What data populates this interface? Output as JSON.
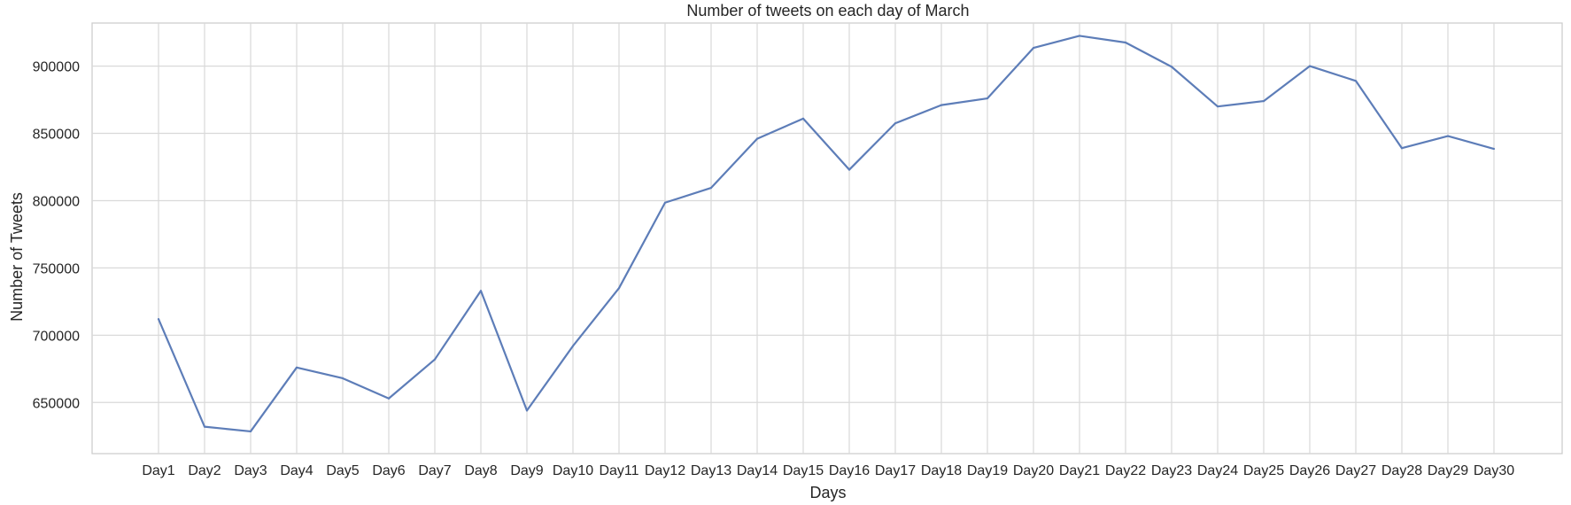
{
  "chart_data": {
    "type": "line",
    "title": "Number of tweets on each day of March",
    "xlabel": "Days",
    "ylabel": "Number of Tweets",
    "categories": [
      "Day1",
      "Day2",
      "Day3",
      "Day4",
      "Day5",
      "Day6",
      "Day7",
      "Day8",
      "Day9",
      "Day10",
      "Day11",
      "Day12",
      "Day13",
      "Day14",
      "Day15",
      "Day16",
      "Day17",
      "Day18",
      "Day19",
      "Day20",
      "Day21",
      "Day22",
      "Day23",
      "Day24",
      "Day25",
      "Day26",
      "Day27",
      "Day28",
      "Day29",
      "Day30"
    ],
    "series": [
      {
        "values": [
          712000,
          632000,
          628500,
          676000,
          668000,
          653000,
          682000,
          733000,
          644000,
          692000,
          735000,
          798500,
          809500,
          846000,
          861000,
          823000,
          857500,
          871000,
          876000,
          913500,
          922500,
          917500,
          899500,
          870000,
          874000,
          900000,
          889000,
          839000,
          848000,
          838500
        ],
        "color": "#5d7db8"
      }
    ],
    "yticks": [
      650000,
      700000,
      750000,
      800000,
      850000,
      900000
    ],
    "ylim": [
      612000,
      932000
    ],
    "grid": true,
    "legend": "none"
  }
}
